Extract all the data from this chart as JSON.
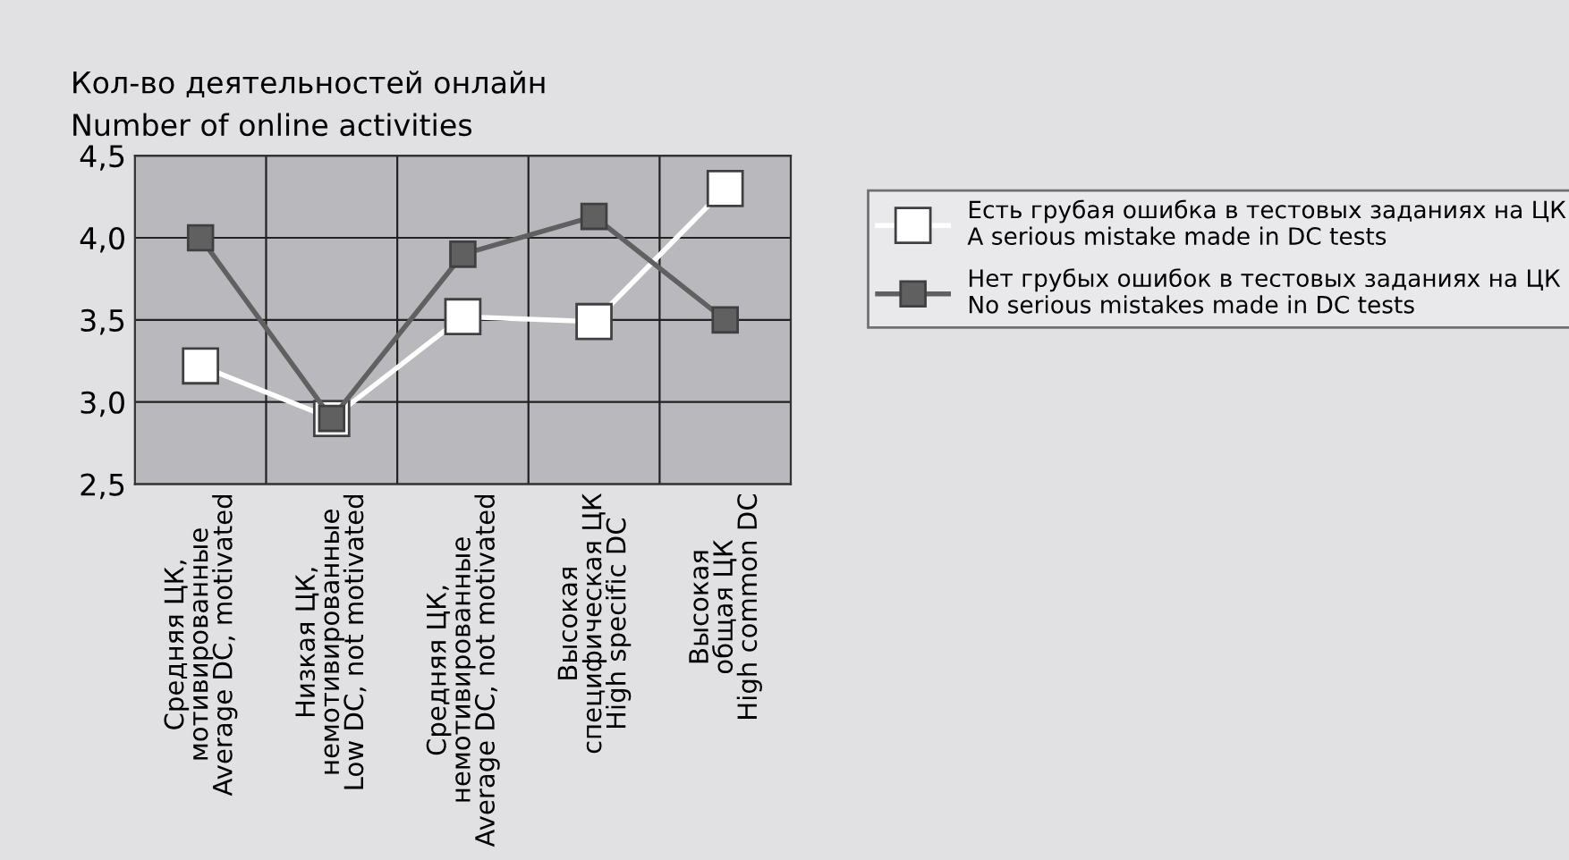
{
  "chart_data": {
    "type": "line",
    "ylabel": "Кол-во деятельностей онлайн\nNumber of online activities",
    "categories": [
      "Средняя ЦК,\nмотивированные\nAverage DC, motivated",
      "Низкая ЦК,\nнемотивированные\nLow DC, not motivated",
      "Средняя ЦК,\nнемотивированные\nAverage DC, not motivated",
      "Высокая\nспецифическая ЦК\nHigh specific DC",
      "Высокая\nобщая ЦК\nHigh common DC"
    ],
    "series": [
      {
        "name": "Есть грубая ошибка в тестовых заданиях на ЦК\nA serious mistake made in DC tests",
        "color": "#ffffff",
        "values": [
          3.22,
          2.9,
          3.52,
          3.49,
          4.3
        ]
      },
      {
        "name": "Нет грубых ошибок в тестовых заданиях на ЦК\nNo serious mistakes made in DC tests",
        "color": "#606060",
        "values": [
          4.0,
          2.9,
          3.9,
          4.13,
          3.5
        ]
      }
    ],
    "ylim": [
      2.5,
      4.5
    ],
    "yticks": [
      {
        "value": 2.5,
        "label": "2,5"
      },
      {
        "value": 3.0,
        "label": "3,0"
      },
      {
        "value": 3.5,
        "label": "3,5"
      },
      {
        "value": 4.0,
        "label": "4,0"
      },
      {
        "value": 4.5,
        "label": "4,5"
      }
    ],
    "grid": true,
    "legend": "right",
    "marker": "square",
    "line_style": "solid"
  }
}
